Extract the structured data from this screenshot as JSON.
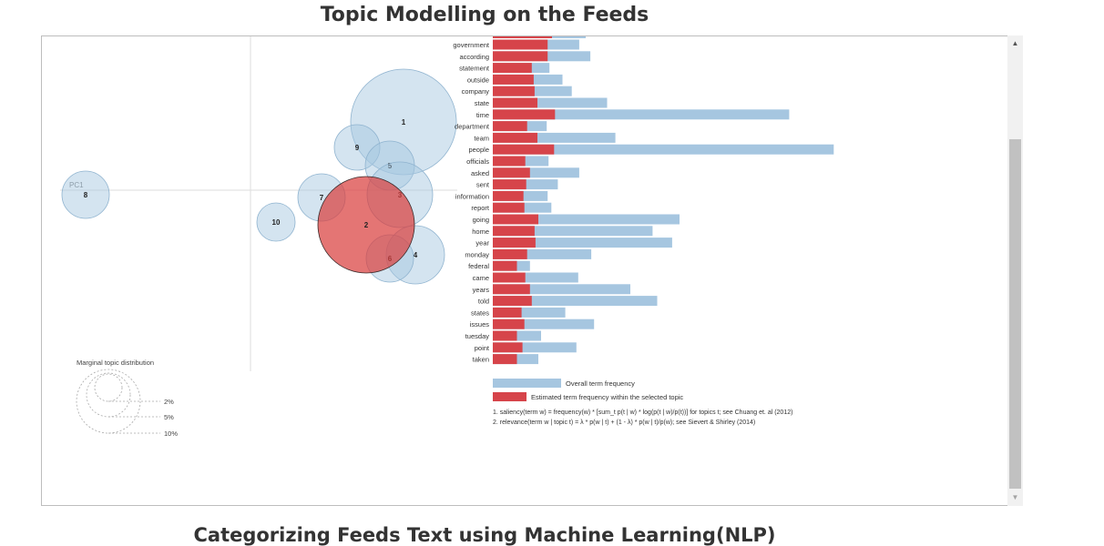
{
  "page": {
    "title": "Topic Modelling on the Feeds",
    "next_section_title": "Categorizing Feeds Text using Machine Learning(NLP)"
  },
  "intertopic": {
    "pc_axis_label": "PC1",
    "topics": [
      {
        "id": "1"
      },
      {
        "id": "2",
        "selected": true
      },
      {
        "id": "3"
      },
      {
        "id": "4"
      },
      {
        "id": "5"
      },
      {
        "id": "6"
      },
      {
        "id": "7"
      },
      {
        "id": "8"
      },
      {
        "id": "9"
      },
      {
        "id": "10"
      }
    ],
    "legend": {
      "title": "Marginal topic distribution",
      "levels": [
        "2%",
        "5%",
        "10%"
      ]
    },
    "colors": {
      "topic_fill": "#a6c6e0",
      "selected_fill": "#d9403f"
    }
  },
  "terms": {
    "items": [
      {
        "term": "government",
        "overall": 0.186,
        "estimated": 0.118
      },
      {
        "term": "according",
        "overall": 0.21,
        "estimated": 0.118
      },
      {
        "term": "statement",
        "overall": 0.122,
        "estimated": 0.084
      },
      {
        "term": "outside",
        "overall": 0.15,
        "estimated": 0.088
      },
      {
        "term": "company",
        "overall": 0.17,
        "estimated": 0.09
      },
      {
        "term": "state",
        "overall": 0.246,
        "estimated": 0.096
      },
      {
        "term": "time",
        "overall": 0.638,
        "estimated": 0.134
      },
      {
        "term": "department",
        "overall": 0.116,
        "estimated": 0.074
      },
      {
        "term": "team",
        "overall": 0.264,
        "estimated": 0.096
      },
      {
        "term": "people",
        "overall": 0.734,
        "estimated": 0.132
      },
      {
        "term": "officials",
        "overall": 0.12,
        "estimated": 0.07
      },
      {
        "term": "asked",
        "overall": 0.186,
        "estimated": 0.08
      },
      {
        "term": "sent",
        "overall": 0.14,
        "estimated": 0.072
      },
      {
        "term": "information",
        "overall": 0.118,
        "estimated": 0.066
      },
      {
        "term": "report",
        "overall": 0.126,
        "estimated": 0.068
      },
      {
        "term": "going",
        "overall": 0.402,
        "estimated": 0.098
      },
      {
        "term": "home",
        "overall": 0.344,
        "estimated": 0.09
      },
      {
        "term": "year",
        "overall": 0.386,
        "estimated": 0.092
      },
      {
        "term": "monday",
        "overall": 0.212,
        "estimated": 0.074
      },
      {
        "term": "federal",
        "overall": 0.08,
        "estimated": 0.052
      },
      {
        "term": "came",
        "overall": 0.184,
        "estimated": 0.07
      },
      {
        "term": "years",
        "overall": 0.296,
        "estimated": 0.08
      },
      {
        "term": "told",
        "overall": 0.354,
        "estimated": 0.084
      },
      {
        "term": "states",
        "overall": 0.156,
        "estimated": 0.062
      },
      {
        "term": "issues",
        "overall": 0.218,
        "estimated": 0.068
      },
      {
        "term": "tuesday",
        "overall": 0.104,
        "estimated": 0.052
      },
      {
        "term": "point",
        "overall": 0.18,
        "estimated": 0.064
      },
      {
        "term": "taken",
        "overall": 0.098,
        "estimated": 0.052
      }
    ],
    "legend": {
      "overall_label": "Overall term frequency",
      "estimated_label": "Estimated term frequency within the selected topic"
    },
    "footnotes": [
      "1. saliency(term w) = frequency(w) * [sum_t p(t | w) * log(p(t | w)/p(t))] for topics t; see Chuang et. al (2012)",
      "2. relevance(term w | topic t) = λ * p(w | t) + (1 - λ) * p(w | t)/p(w); see Sievert & Shirley (2014)"
    ],
    "colors": {
      "overall": "#a6c6e0",
      "estimated": "#d6444a"
    }
  }
}
